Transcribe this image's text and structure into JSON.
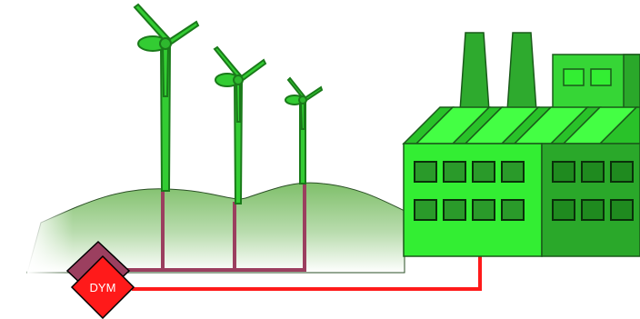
{
  "diagram": {
    "colors": {
      "hill_top": "#7fbf6a",
      "hill_bottom": "#ffffff",
      "turbine_green": "#33cc33",
      "turbine_outline": "#1a7a1a",
      "factory_bright": "#33ee33",
      "factory_mid": "#2eaa2e",
      "factory_dark": "#1f8a1f",
      "window_fill": "#2a9a2a",
      "collector_line": "#9b3f5f",
      "signal_line": "#ff1a1a",
      "dym_red": "#ff1a1a",
      "dym_maroon": "#9b3f5f",
      "outline": "#000000"
    },
    "icons": {
      "wind_turbine": "wind-turbine-icon",
      "factory": "factory-icon",
      "dym_device": "diamond-device-icon"
    },
    "turbine_count": 3,
    "dym_device": {
      "label": "DYM"
    }
  }
}
